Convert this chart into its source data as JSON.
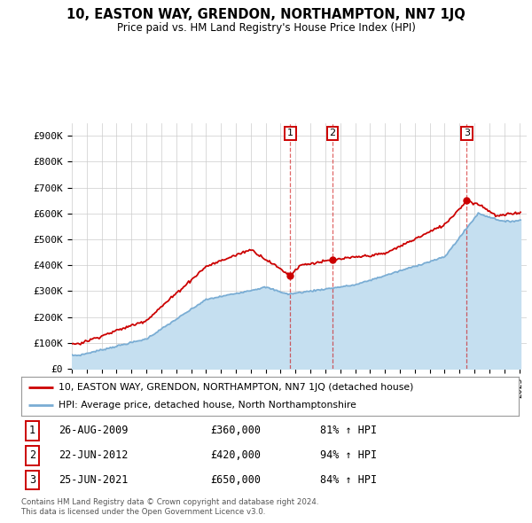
{
  "title": "10, EASTON WAY, GRENDON, NORTHAMPTON, NN7 1JQ",
  "subtitle": "Price paid vs. HM Land Registry's House Price Index (HPI)",
  "ylabel_ticks": [
    "£0",
    "£100K",
    "£200K",
    "£300K",
    "£400K",
    "£500K",
    "£600K",
    "£700K",
    "£800K",
    "£900K"
  ],
  "ytick_values": [
    0,
    100000,
    200000,
    300000,
    400000,
    500000,
    600000,
    700000,
    800000,
    900000
  ],
  "ylim": [
    0,
    950000
  ],
  "sale_years": [
    2009.647,
    2012.472,
    2021.486
  ],
  "sale_prices": [
    360000,
    420000,
    650000
  ],
  "sale_labels": [
    "1",
    "2",
    "3"
  ],
  "sale_label_display": [
    "26-AUG-2009",
    "22-JUN-2012",
    "25-JUN-2021"
  ],
  "sale_prices_display": [
    "£360,000",
    "£420,000",
    "£650,000"
  ],
  "sale_hpi_pct": [
    "81% ↑ HPI",
    "94% ↑ HPI",
    "84% ↑ HPI"
  ],
  "red_color": "#cc0000",
  "blue_color": "#7aadd4",
  "blue_fill": "#c5dff0",
  "vline_color": "#cc0000",
  "grid_color": "#cccccc",
  "background_color": "#ffffff",
  "legend_line1": "10, EASTON WAY, GRENDON, NORTHAMPTON, NN7 1JQ (detached house)",
  "legend_line2": "HPI: Average price, detached house, North Northamptonshire",
  "footer1": "Contains HM Land Registry data © Crown copyright and database right 2024.",
  "footer2": "This data is licensed under the Open Government Licence v3.0."
}
